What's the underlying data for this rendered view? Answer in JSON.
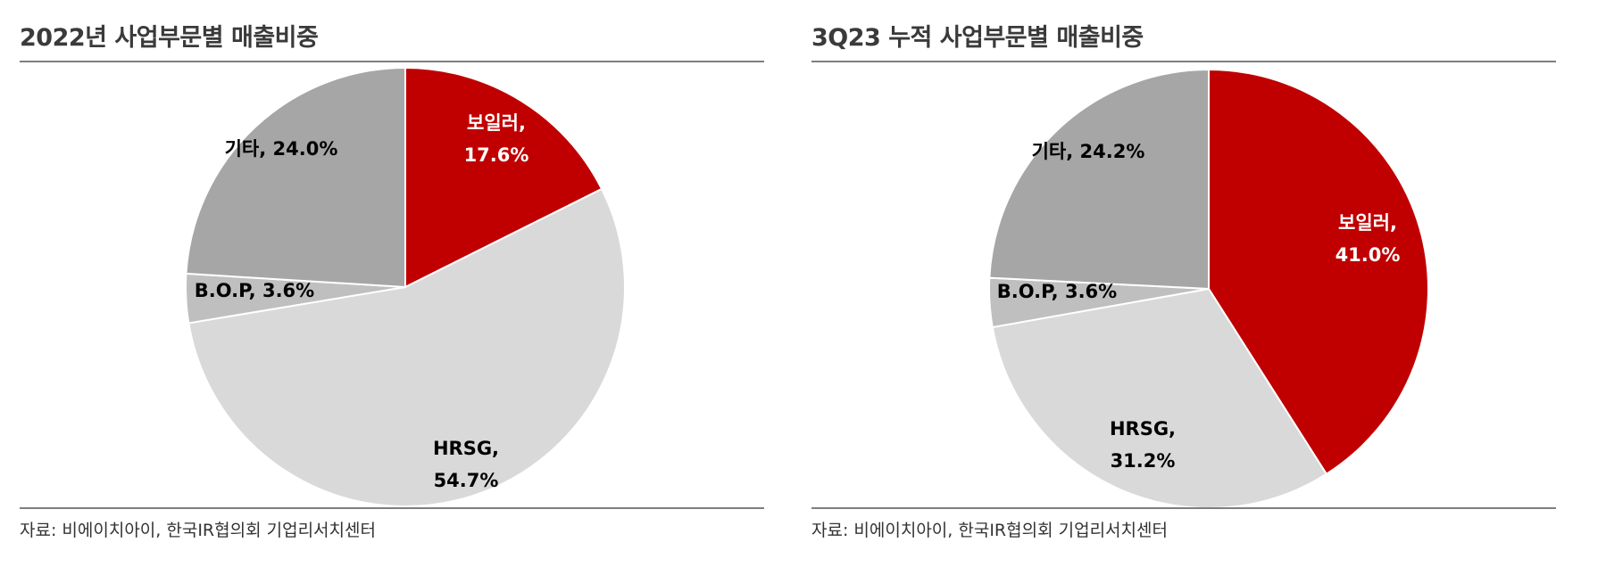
{
  "chart_data": [
    {
      "type": "pie",
      "title": "2022년 사업부문별 매출비중",
      "source": "자료: 비에이치아이, 한국IR협의회 기업리서치센터",
      "slices": [
        {
          "name": "보일러",
          "value": 17.6,
          "pct_text": "17.6%",
          "color": "#c00000",
          "label_color": "#ffffff",
          "line1": "보일러,",
          "line2": "17.6%"
        },
        {
          "name": "HRSG",
          "value": 54.7,
          "pct_text": "54.7%",
          "color": "#d9d9d9",
          "label_color": "#000000",
          "line1": "HRSG,",
          "line2": "54.7%"
        },
        {
          "name": "B.O.P",
          "value": 3.6,
          "pct_text": "3.6%",
          "color": "#bfbfbf",
          "label_color": "#000000",
          "line1": "B.O.P, 3.6%",
          "line2": ""
        },
        {
          "name": "기타",
          "value": 24.0,
          "pct_text": "24.0%",
          "color": "#a6a6a6",
          "label_color": "#000000",
          "line1": "기타, 24.0%",
          "line2": ""
        }
      ],
      "legend": "none",
      "start_angle": "12 o'clock, clockwise"
    },
    {
      "type": "pie",
      "title": "3Q23 누적 사업부문별 매출비중",
      "source": "자료: 비에이치아이, 한국IR협의회 기업리서치센터",
      "slices": [
        {
          "name": "보일러",
          "value": 41.0,
          "pct_text": "41.0%",
          "color": "#c00000",
          "label_color": "#ffffff",
          "line1": "보일러,",
          "line2": "41.0%"
        },
        {
          "name": "HRSG",
          "value": 31.2,
          "pct_text": "31.2%",
          "color": "#d9d9d9",
          "label_color": "#000000",
          "line1": "HRSG,",
          "line2": "31.2%"
        },
        {
          "name": "B.O.P",
          "value": 3.6,
          "pct_text": "3.6%",
          "color": "#bfbfbf",
          "label_color": "#000000",
          "line1": "B.O.P, 3.6%",
          "line2": ""
        },
        {
          "name": "기타",
          "value": 24.2,
          "pct_text": "24.2%",
          "color": "#a6a6a6",
          "label_color": "#000000",
          "line1": "기타, 24.2%",
          "line2": ""
        }
      ],
      "legend": "none",
      "start_angle": "12 o'clock, clockwise"
    }
  ]
}
